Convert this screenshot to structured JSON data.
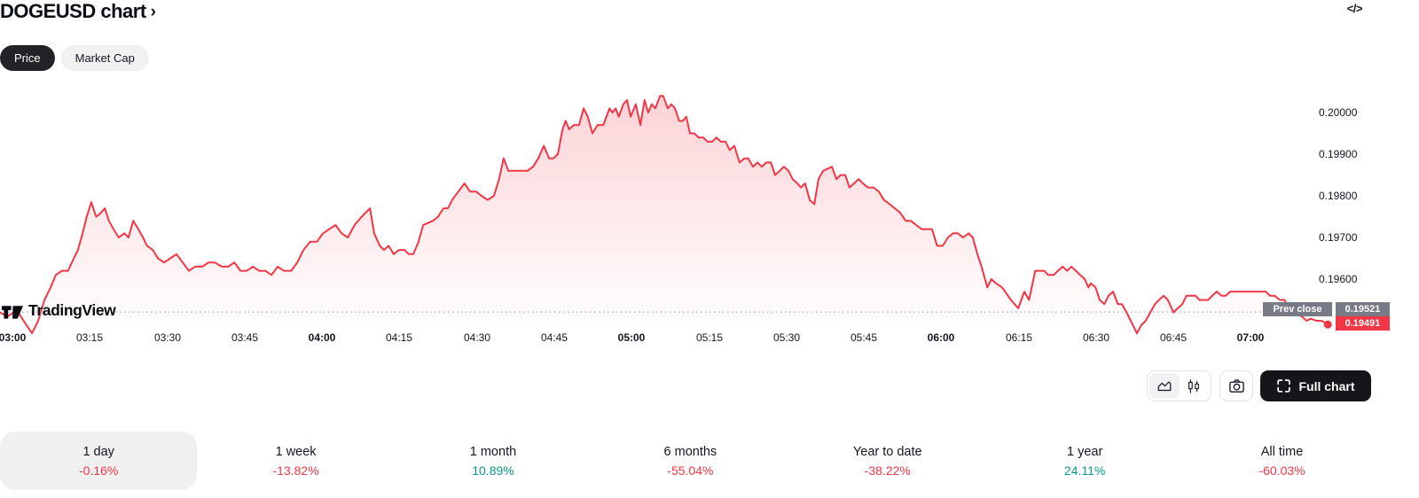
{
  "header": {
    "title": "DOGEUSD chart",
    "chevron": "›",
    "embed_icon": "</>"
  },
  "tabs": [
    {
      "label": "Price",
      "active": true
    },
    {
      "label": "Market Cap",
      "active": false
    }
  ],
  "toolbar": {
    "full_chart_label": "Full chart",
    "chart_type_selected": "area"
  },
  "watermark": "TradingView",
  "colors": {
    "line_red": "#f23645",
    "positive_green": "#089981",
    "badge_gray": "#787b86",
    "active_pill_bg": "#222326"
  },
  "periods": [
    {
      "label": "1 day",
      "change": "-0.16%",
      "direction": "down",
      "selected": true
    },
    {
      "label": "1 week",
      "change": "-13.82%",
      "direction": "down",
      "selected": false
    },
    {
      "label": "1 month",
      "change": "10.89%",
      "direction": "up",
      "selected": false
    },
    {
      "label": "6 months",
      "change": "-55.04%",
      "direction": "down",
      "selected": false
    },
    {
      "label": "Year to date",
      "change": "-38.22%",
      "direction": "down",
      "selected": false
    },
    {
      "label": "1 year",
      "change": "24.11%",
      "direction": "up",
      "selected": false
    },
    {
      "label": "All time",
      "change": "-60.03%",
      "direction": "down",
      "selected": false
    }
  ],
  "chart_data": {
    "type": "area",
    "symbol": "DOGEUSD",
    "line_color": "#f23645",
    "legend_position": "none",
    "grid": false,
    "prev_close": {
      "label": "Prev close",
      "value": "0.19521"
    },
    "last_price": {
      "value": "0.19491"
    },
    "y_ticks": [
      "0.20000",
      "0.19900",
      "0.19800",
      "0.19700",
      "0.19600"
    ],
    "y_range": [
      0.1944,
      0.2006
    ],
    "x_ticks": [
      {
        "label": "03:00",
        "minute": 0,
        "bold": true
      },
      {
        "label": "03:15",
        "minute": 15,
        "bold": false
      },
      {
        "label": "03:30",
        "minute": 30,
        "bold": false
      },
      {
        "label": "03:45",
        "minute": 45,
        "bold": false
      },
      {
        "label": "04:00",
        "minute": 60,
        "bold": true
      },
      {
        "label": "04:15",
        "minute": 75,
        "bold": false
      },
      {
        "label": "04:30",
        "minute": 90,
        "bold": false
      },
      {
        "label": "04:45",
        "minute": 105,
        "bold": false
      },
      {
        "label": "05:00",
        "minute": 120,
        "bold": true
      },
      {
        "label": "05:15",
        "minute": 135,
        "bold": false
      },
      {
        "label": "05:30",
        "minute": 150,
        "bold": false
      },
      {
        "label": "05:45",
        "minute": 165,
        "bold": false
      },
      {
        "label": "06:00",
        "minute": 180,
        "bold": true
      },
      {
        "label": "06:15",
        "minute": 195,
        "bold": false
      },
      {
        "label": "06:30",
        "minute": 210,
        "bold": false
      },
      {
        "label": "06:45",
        "minute": 225,
        "bold": false
      },
      {
        "label": "07:00",
        "minute": 240,
        "bold": true
      }
    ],
    "points": [
      [
        -2.4,
        0.1952
      ],
      [
        -1,
        0.1951
      ],
      [
        0.2,
        0.1952
      ],
      [
        1.4,
        0.19515
      ],
      [
        2.7,
        0.1949
      ],
      [
        3.8,
        0.1947
      ],
      [
        5,
        0.195
      ],
      [
        6.2,
        0.1955
      ],
      [
        7.4,
        0.1958
      ],
      [
        8.4,
        0.1961
      ],
      [
        9.6,
        0.1962
      ],
      [
        10.8,
        0.1962
      ],
      [
        11.9,
        0.1965
      ],
      [
        12.7,
        0.1967
      ],
      [
        13.6,
        0.1971
      ],
      [
        14.4,
        0.1975
      ],
      [
        15.3,
        0.19785
      ],
      [
        16.2,
        0.1975
      ],
      [
        16.8,
        0.19755
      ],
      [
        17.9,
        0.1977
      ],
      [
        18.7,
        0.1974
      ],
      [
        19.6,
        0.1972
      ],
      [
        20.6,
        0.197
      ],
      [
        21.7,
        0.1971
      ],
      [
        22.5,
        0.197
      ],
      [
        23.4,
        0.1974
      ],
      [
        24.4,
        0.1972
      ],
      [
        25.3,
        0.197
      ],
      [
        26.1,
        0.1968
      ],
      [
        27.2,
        0.1967
      ],
      [
        28.2,
        0.1965
      ],
      [
        29.4,
        0.1964
      ],
      [
        30.6,
        0.1965
      ],
      [
        31.8,
        0.1966
      ],
      [
        33,
        0.1964
      ],
      [
        34.2,
        0.1962
      ],
      [
        35.4,
        0.1963
      ],
      [
        36.8,
        0.1963
      ],
      [
        38,
        0.1964
      ],
      [
        39.2,
        0.1964
      ],
      [
        40.6,
        0.1963
      ],
      [
        41.8,
        0.1963
      ],
      [
        43,
        0.1964
      ],
      [
        44.2,
        0.1962
      ],
      [
        45.4,
        0.1962
      ],
      [
        46.6,
        0.1963
      ],
      [
        47.8,
        0.1962
      ],
      [
        49,
        0.1962
      ],
      [
        50.2,
        0.1961
      ],
      [
        51.4,
        0.1963
      ],
      [
        52.6,
        0.1962
      ],
      [
        54,
        0.1962
      ],
      [
        55.2,
        0.1964
      ],
      [
        56.4,
        0.1967
      ],
      [
        57.7,
        0.1969
      ],
      [
        59,
        0.1969
      ],
      [
        60.2,
        0.1971
      ],
      [
        61.4,
        0.1972
      ],
      [
        62.6,
        0.1973
      ],
      [
        63.8,
        0.1971
      ],
      [
        65,
        0.197
      ],
      [
        66.3,
        0.1973
      ],
      [
        67.7,
        0.1975
      ],
      [
        69.3,
        0.1977
      ],
      [
        70.1,
        0.1971
      ],
      [
        71.2,
        0.1968
      ],
      [
        72,
        0.1967
      ],
      [
        72.9,
        0.1968
      ],
      [
        73.9,
        0.1966
      ],
      [
        74.9,
        0.1967
      ],
      [
        76,
        0.1967
      ],
      [
        76.8,
        0.1966
      ],
      [
        77.7,
        0.1966
      ],
      [
        78.7,
        0.1969
      ],
      [
        79.6,
        0.1973
      ],
      [
        81.5,
        0.1974
      ],
      [
        82.5,
        0.1975
      ],
      [
        83.5,
        0.1977
      ],
      [
        84.4,
        0.1977
      ],
      [
        85.2,
        0.1979
      ],
      [
        86.4,
        0.1981
      ],
      [
        87.6,
        0.1983
      ],
      [
        88.7,
        0.1981
      ],
      [
        89.9,
        0.1981
      ],
      [
        90.9,
        0.198
      ],
      [
        92.1,
        0.1979
      ],
      [
        93.3,
        0.198
      ],
      [
        94.3,
        0.1984
      ],
      [
        95.2,
        0.1989
      ],
      [
        96.1,
        0.1986
      ],
      [
        97.3,
        0.1986
      ],
      [
        99.8,
        0.1986
      ],
      [
        100.9,
        0.1987
      ],
      [
        101.9,
        0.1989
      ],
      [
        103,
        0.1992
      ],
      [
        104,
        0.1989
      ],
      [
        104.8,
        0.1989
      ],
      [
        105.7,
        0.199
      ],
      [
        106.6,
        0.1996
      ],
      [
        107.2,
        0.1998
      ],
      [
        107.9,
        0.1996
      ],
      [
        108.8,
        0.1997
      ],
      [
        109.8,
        0.1997
      ],
      [
        110.7,
        0.2001
      ],
      [
        111.5,
        0.1999
      ],
      [
        112.4,
        0.1995
      ],
      [
        113.4,
        0.1997
      ],
      [
        114.5,
        0.1997
      ],
      [
        115.7,
        0.2001
      ],
      [
        116.3,
        0.2
      ],
      [
        116.9,
        0.2001
      ],
      [
        117.5,
        0.1999
      ],
      [
        118.4,
        0.2002
      ],
      [
        119.1,
        0.2003
      ],
      [
        119.8,
        0.1999
      ],
      [
        120.8,
        0.2002
      ],
      [
        121.7,
        0.1997
      ],
      [
        122.5,
        0.2003
      ],
      [
        123.2,
        0.2
      ],
      [
        123.9,
        0.2002
      ],
      [
        124.6,
        0.2001
      ],
      [
        125.5,
        0.2004
      ],
      [
        126.1,
        0.2004
      ],
      [
        127,
        0.2001
      ],
      [
        127.7,
        0.2002
      ],
      [
        128.4,
        0.2001
      ],
      [
        129.2,
        0.1998
      ],
      [
        129.9,
        0.1998
      ],
      [
        130.6,
        0.1999
      ],
      [
        131.3,
        0.1995
      ],
      [
        132.1,
        0.1995
      ],
      [
        133,
        0.1994
      ],
      [
        133.9,
        0.1994
      ],
      [
        134.7,
        0.1993
      ],
      [
        135.6,
        0.1993
      ],
      [
        136.4,
        0.1994
      ],
      [
        137.3,
        0.1993
      ],
      [
        138.2,
        0.1993
      ],
      [
        139,
        0.1991
      ],
      [
        139.9,
        0.1992
      ],
      [
        140.9,
        0.1988
      ],
      [
        141.8,
        0.1989
      ],
      [
        142.6,
        0.1989
      ],
      [
        143.5,
        0.1987
      ],
      [
        144.4,
        0.1988
      ],
      [
        145.2,
        0.1987
      ],
      [
        146.1,
        0.1988
      ],
      [
        147,
        0.1988
      ],
      [
        147.8,
        0.1985
      ],
      [
        148.7,
        0.1986
      ],
      [
        149.5,
        0.1987
      ],
      [
        150.4,
        0.1986
      ],
      [
        151.2,
        0.1984
      ],
      [
        152.1,
        0.1983
      ],
      [
        152.8,
        0.1982
      ],
      [
        153.6,
        0.1983
      ],
      [
        154.5,
        0.1979
      ],
      [
        155.4,
        0.1978
      ],
      [
        156.2,
        0.1984
      ],
      [
        157.1,
        0.1986
      ],
      [
        158.8,
        0.1987
      ],
      [
        159.7,
        0.1984
      ],
      [
        160.5,
        0.1985
      ],
      [
        161.4,
        0.1985
      ],
      [
        162.2,
        0.1982
      ],
      [
        163.1,
        0.1983
      ],
      [
        164,
        0.1984
      ],
      [
        164.8,
        0.1983
      ],
      [
        165.8,
        0.1982
      ],
      [
        166.9,
        0.1982
      ],
      [
        167.9,
        0.1981
      ],
      [
        168.9,
        0.1979
      ],
      [
        170,
        0.1978
      ],
      [
        171,
        0.1977
      ],
      [
        172,
        0.1976
      ],
      [
        173.1,
        0.1974
      ],
      [
        174.1,
        0.1974
      ],
      [
        175.1,
        0.1973
      ],
      [
        176.2,
        0.1972
      ],
      [
        177.2,
        0.1972
      ],
      [
        178.2,
        0.1972
      ],
      [
        179.2,
        0.1968
      ],
      [
        180.3,
        0.1968
      ],
      [
        181.3,
        0.197
      ],
      [
        182.3,
        0.1971
      ],
      [
        183.2,
        0.1971
      ],
      [
        184.2,
        0.197
      ],
      [
        185.3,
        0.1971
      ],
      [
        186.1,
        0.197
      ],
      [
        187,
        0.1966
      ],
      [
        187.8,
        0.1963
      ],
      [
        188.9,
        0.1958
      ],
      [
        189.7,
        0.196
      ],
      [
        190.6,
        0.1959
      ],
      [
        191.8,
        0.1958
      ],
      [
        193.5,
        0.1955
      ],
      [
        194.9,
        0.1953
      ],
      [
        196.1,
        0.1957
      ],
      [
        197,
        0.1955
      ],
      [
        198.2,
        0.1962
      ],
      [
        199,
        0.1962
      ],
      [
        199.9,
        0.1962
      ],
      [
        200.7,
        0.1961
      ],
      [
        201.8,
        0.1961
      ],
      [
        202.6,
        0.1962
      ],
      [
        203.5,
        0.1963
      ],
      [
        204.4,
        0.1962
      ],
      [
        205.2,
        0.1963
      ],
      [
        206.1,
        0.1962
      ],
      [
        206.9,
        0.1961
      ],
      [
        207.8,
        0.196
      ],
      [
        208.5,
        0.1958
      ],
      [
        209,
        0.1959
      ],
      [
        209.9,
        0.1958
      ],
      [
        210.7,
        0.1955
      ],
      [
        211.6,
        0.1954
      ],
      [
        212.4,
        0.1956
      ],
      [
        213.3,
        0.1957
      ],
      [
        214.2,
        0.1954
      ],
      [
        215,
        0.1954
      ],
      [
        215.9,
        0.1952
      ],
      [
        216.7,
        0.195
      ],
      [
        217.9,
        0.1947
      ],
      [
        218.8,
        0.1949
      ],
      [
        219.6,
        0.195
      ],
      [
        220.5,
        0.1952
      ],
      [
        221.4,
        0.1954
      ],
      [
        222.2,
        0.1955
      ],
      [
        223.1,
        0.1956
      ],
      [
        223.9,
        0.1955
      ],
      [
        225,
        0.1952
      ],
      [
        225.8,
        0.1953
      ],
      [
        226.7,
        0.1954
      ],
      [
        227.5,
        0.1956
      ],
      [
        228.4,
        0.1956
      ],
      [
        229.3,
        0.1956
      ],
      [
        230,
        0.1955
      ],
      [
        230.8,
        0.1955
      ],
      [
        231.7,
        0.1955
      ],
      [
        232.5,
        0.1956
      ],
      [
        233.4,
        0.1957
      ],
      [
        234.3,
        0.1956
      ],
      [
        235.1,
        0.1956
      ],
      [
        236,
        0.1957
      ],
      [
        236.8,
        0.1957
      ],
      [
        238.6,
        0.1957
      ],
      [
        240.3,
        0.1957
      ],
      [
        242,
        0.1957
      ],
      [
        242.9,
        0.1957
      ],
      [
        243.7,
        0.1956
      ],
      [
        244.6,
        0.1956
      ],
      [
        245.6,
        0.1955
      ],
      [
        246.5,
        0.1955
      ],
      [
        247.3,
        0.1953
      ],
      [
        248.2,
        0.1952
      ],
      [
        249.1,
        0.19515
      ],
      [
        249.9,
        0.1951
      ],
      [
        250.8,
        0.195
      ],
      [
        251.6,
        0.19505
      ],
      [
        252.7,
        0.195
      ],
      [
        253.7,
        0.195
      ],
      [
        254.9,
        0.19491
      ]
    ]
  }
}
